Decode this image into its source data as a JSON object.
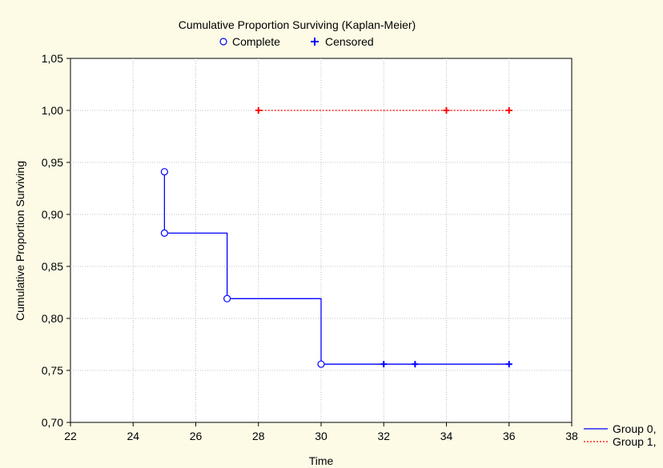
{
  "chart_data": {
    "type": "line",
    "title": "Cumulative Proportion Surviving (Kaplan-Meier)",
    "marker_legend": [
      {
        "label": "Complete",
        "marker": "circle"
      },
      {
        "label": "Censored",
        "marker": "plus"
      }
    ],
    "xlabel": "Time",
    "ylabel": "Cumulative Proportion Surviving",
    "xlim": [
      22,
      38
    ],
    "ylim": [
      0.7,
      1.05
    ],
    "xticks": [
      "22",
      "24",
      "26",
      "28",
      "30",
      "32",
      "34",
      "36",
      "38"
    ],
    "yticks": [
      "0,70",
      "0,75",
      "0,80",
      "0,85",
      "0,90",
      "0,95",
      "1,00",
      "1,05"
    ],
    "grid": true,
    "legend_position": "bottom-right outside",
    "series": [
      {
        "name": "Group 0,",
        "color": "#0000ff",
        "line_style": "solid",
        "step_path": [
          [
            25,
            0.941
          ],
          [
            25,
            0.882
          ],
          [
            27,
            0.882
          ],
          [
            27,
            0.819
          ],
          [
            30,
            0.819
          ],
          [
            30,
            0.756
          ],
          [
            36,
            0.756
          ]
        ],
        "complete": [
          [
            25,
            0.941
          ],
          [
            25,
            0.882
          ],
          [
            27,
            0.819
          ],
          [
            30,
            0.756
          ]
        ],
        "censored": [
          [
            32,
            0.756
          ],
          [
            33,
            0.756
          ],
          [
            36,
            0.756
          ]
        ]
      },
      {
        "name": "Group 1,",
        "color": "#ff0000",
        "line_style": "dotted",
        "step_path": [
          [
            28,
            1.0
          ],
          [
            36,
            1.0
          ]
        ],
        "complete": [],
        "censored": [
          [
            28,
            1.0
          ],
          [
            34,
            1.0
          ],
          [
            36,
            1.0
          ]
        ]
      }
    ]
  }
}
